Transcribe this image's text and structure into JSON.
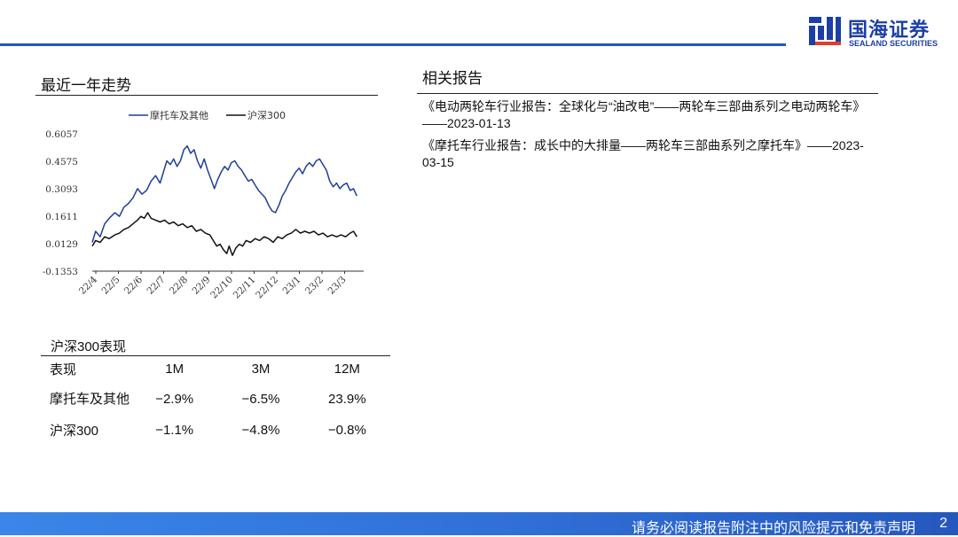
{
  "brand": {
    "name_cn": "国海证券",
    "name_en": "SEALAND SECURITIES"
  },
  "left": {
    "chart_section_title": "最近一年走势",
    "performance_title": "沪深300表现"
  },
  "right": {
    "reports_title": "相关报告",
    "reports": [
      "《电动两轮车行业报告：全球化与“油改电”——两轮车三部曲系列之电动两轮车》——2023-01-13",
      "《摩托车行业报告：成长中的大排量——两轮车三部曲系列之摩托车》——2023-03-15"
    ]
  },
  "performance": {
    "headers": [
      "表现",
      "1M",
      "3M",
      "12M"
    ],
    "rows": [
      {
        "name": "摩托车及其他",
        "values": [
          "−2.9%",
          "−6.5%",
          "23.9%"
        ]
      },
      {
        "name": "沪深300",
        "values": [
          "−1.1%",
          "−4.8%",
          "−0.8%"
        ]
      }
    ]
  },
  "chart_data": {
    "type": "line",
    "title": "",
    "xlabel": "",
    "ylabel": "",
    "ylim": [
      -0.1353,
      0.6057
    ],
    "yticks": [
      "0.6057",
      "0.4575",
      "0.3093",
      "0.1611",
      "0.0129",
      "-0.1353"
    ],
    "xticks": [
      "22/4",
      "22/5",
      "22/6",
      "22/7",
      "22/8",
      "22/9",
      "22/10",
      "22/11",
      "22/12",
      "23/1",
      "23/2",
      "23/3"
    ],
    "legend": "top",
    "grid": false,
    "series": [
      {
        "name": "摩托车及其他",
        "color": "#1f3f96",
        "points": [
          [
            0,
            0.02
          ],
          [
            0.15,
            0.08
          ],
          [
            0.35,
            0.05
          ],
          [
            0.55,
            0.12
          ],
          [
            0.75,
            0.15
          ],
          [
            1.0,
            0.18
          ],
          [
            1.2,
            0.16
          ],
          [
            1.4,
            0.21
          ],
          [
            1.6,
            0.23
          ],
          [
            1.8,
            0.26
          ],
          [
            2.0,
            0.31
          ],
          [
            2.2,
            0.28
          ],
          [
            2.4,
            0.3
          ],
          [
            2.6,
            0.35
          ],
          [
            2.8,
            0.38
          ],
          [
            3.0,
            0.34
          ],
          [
            3.15,
            0.4
          ],
          [
            3.3,
            0.46
          ],
          [
            3.45,
            0.44
          ],
          [
            3.6,
            0.47
          ],
          [
            3.75,
            0.43
          ],
          [
            3.9,
            0.46
          ],
          [
            4.05,
            0.52
          ],
          [
            4.2,
            0.54
          ],
          [
            4.35,
            0.5
          ],
          [
            4.5,
            0.52
          ],
          [
            4.65,
            0.46
          ],
          [
            4.8,
            0.42
          ],
          [
            4.95,
            0.47
          ],
          [
            5.1,
            0.41
          ],
          [
            5.25,
            0.36
          ],
          [
            5.4,
            0.31
          ],
          [
            5.55,
            0.36
          ],
          [
            5.7,
            0.4
          ],
          [
            5.85,
            0.43
          ],
          [
            6.0,
            0.41
          ],
          [
            6.15,
            0.45
          ],
          [
            6.3,
            0.46
          ],
          [
            6.45,
            0.43
          ],
          [
            6.6,
            0.41
          ],
          [
            6.75,
            0.38
          ],
          [
            6.9,
            0.35
          ],
          [
            7.05,
            0.36
          ],
          [
            7.2,
            0.33
          ],
          [
            7.35,
            0.3
          ],
          [
            7.5,
            0.28
          ],
          [
            7.65,
            0.26
          ],
          [
            7.8,
            0.22
          ],
          [
            7.95,
            0.19
          ],
          [
            8.1,
            0.18
          ],
          [
            8.25,
            0.22
          ],
          [
            8.4,
            0.27
          ],
          [
            8.55,
            0.3
          ],
          [
            8.7,
            0.34
          ],
          [
            8.85,
            0.37
          ],
          [
            9.0,
            0.4
          ],
          [
            9.15,
            0.42
          ],
          [
            9.3,
            0.39
          ],
          [
            9.45,
            0.43
          ],
          [
            9.6,
            0.45
          ],
          [
            9.75,
            0.43
          ],
          [
            9.9,
            0.46
          ],
          [
            10.05,
            0.47
          ],
          [
            10.2,
            0.44
          ],
          [
            10.35,
            0.41
          ],
          [
            10.5,
            0.35
          ],
          [
            10.65,
            0.32
          ],
          [
            10.8,
            0.34
          ],
          [
            10.95,
            0.31
          ],
          [
            11.1,
            0.33
          ],
          [
            11.25,
            0.34
          ],
          [
            11.4,
            0.3
          ],
          [
            11.55,
            0.31
          ],
          [
            11.7,
            0.27
          ]
        ]
      },
      {
        "name": "沪深300",
        "color": "#111111",
        "points": [
          [
            0,
            0.0
          ],
          [
            0.15,
            0.03
          ],
          [
            0.35,
            0.02
          ],
          [
            0.55,
            0.05
          ],
          [
            0.75,
            0.04
          ],
          [
            1.0,
            0.06
          ],
          [
            1.2,
            0.07
          ],
          [
            1.4,
            0.09
          ],
          [
            1.6,
            0.1
          ],
          [
            1.8,
            0.12
          ],
          [
            2.0,
            0.14
          ],
          [
            2.15,
            0.16
          ],
          [
            2.3,
            0.15
          ],
          [
            2.45,
            0.18
          ],
          [
            2.6,
            0.15
          ],
          [
            2.8,
            0.14
          ],
          [
            3.0,
            0.13
          ],
          [
            3.2,
            0.14
          ],
          [
            3.4,
            0.12
          ],
          [
            3.6,
            0.13
          ],
          [
            3.8,
            0.11
          ],
          [
            4.0,
            0.12
          ],
          [
            4.2,
            0.1
          ],
          [
            4.4,
            0.11
          ],
          [
            4.6,
            0.08
          ],
          [
            4.8,
            0.09
          ],
          [
            5.0,
            0.07
          ],
          [
            5.2,
            0.06
          ],
          [
            5.35,
            0.03
          ],
          [
            5.5,
            0.0
          ],
          [
            5.65,
            0.01
          ],
          [
            5.8,
            -0.02
          ],
          [
            5.95,
            -0.04
          ],
          [
            6.05,
            0.0
          ],
          [
            6.2,
            -0.05
          ],
          [
            6.35,
            -0.01
          ],
          [
            6.5,
            0.01
          ],
          [
            6.65,
            0.0
          ],
          [
            6.8,
            0.03
          ],
          [
            7.0,
            0.02
          ],
          [
            7.2,
            0.04
          ],
          [
            7.4,
            0.03
          ],
          [
            7.6,
            0.05
          ],
          [
            7.8,
            0.04
          ],
          [
            8.0,
            0.02
          ],
          [
            8.2,
            0.05
          ],
          [
            8.4,
            0.04
          ],
          [
            8.6,
            0.06
          ],
          [
            8.8,
            0.07
          ],
          [
            9.0,
            0.09
          ],
          [
            9.2,
            0.07
          ],
          [
            9.4,
            0.08
          ],
          [
            9.6,
            0.07
          ],
          [
            9.8,
            0.08
          ],
          [
            10.0,
            0.06
          ],
          [
            10.2,
            0.07
          ],
          [
            10.4,
            0.05
          ],
          [
            10.6,
            0.06
          ],
          [
            10.8,
            0.05
          ],
          [
            11.0,
            0.06
          ],
          [
            11.2,
            0.05
          ],
          [
            11.4,
            0.07
          ],
          [
            11.55,
            0.08
          ],
          [
            11.7,
            0.05
          ]
        ]
      }
    ]
  },
  "footer": {
    "disclaimer": "请务必阅读报告附注中的风险提示和免责声明",
    "page": "2"
  }
}
